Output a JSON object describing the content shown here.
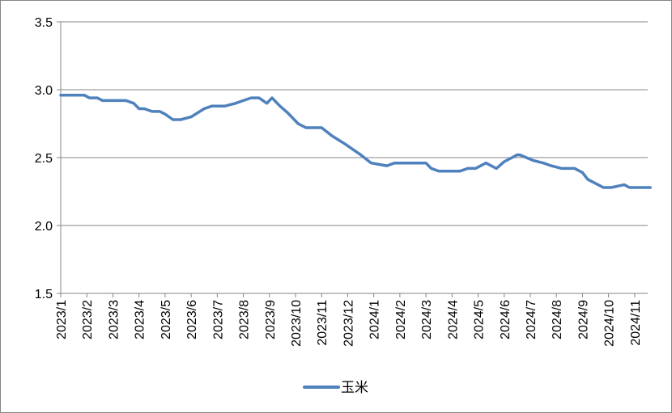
{
  "chart_data": {
    "type": "line",
    "title": "",
    "xlabel": "",
    "ylabel": "",
    "ylim": [
      1.5,
      3.5
    ],
    "y_ticks": [
      "1.5",
      "2.0",
      "2.5",
      "3.0",
      "3.5"
    ],
    "y_tick_values": [
      1.5,
      2.0,
      2.5,
      3.0,
      3.5
    ],
    "grid": true,
    "legend": "bottom-center",
    "line_color": "#4F81BD",
    "categories": [
      "2023/1",
      "2023/2",
      "2023/3",
      "2023/4",
      "2023/5",
      "2023/6",
      "2023/7",
      "2023/8",
      "2023/9",
      "2023/10",
      "2023/11",
      "2023/12",
      "2024/1",
      "2024/2",
      "2024/3",
      "2024/4",
      "2024/5",
      "2024/6",
      "2024/7",
      "2024/8",
      "2024/9",
      "2024/10",
      "2024/11"
    ],
    "series": [
      {
        "name": "玉米",
        "x": [
          0,
          0.6,
          0.9,
          1.1,
          1.4,
          1.6,
          2.0,
          2.5,
          2.8,
          3.0,
          3.2,
          3.5,
          3.8,
          4.0,
          4.3,
          4.6,
          5.0,
          5.5,
          5.8,
          6.3,
          6.7,
          7.0,
          7.3,
          7.6,
          7.9,
          8.1,
          8.4,
          8.7,
          8.9,
          9.1,
          9.4,
          9.7,
          10.0,
          10.4,
          10.9,
          11.2,
          11.5,
          11.9,
          12.2,
          12.5,
          12.8,
          13.2,
          13.6,
          14.0,
          14.2,
          14.5,
          14.9,
          15.3,
          15.6,
          15.9,
          16.3,
          16.7,
          17.0,
          17.3,
          17.5,
          17.6,
          18.1,
          18.5,
          18.8,
          19.2,
          19.7,
          20.0,
          20.2,
          20.5,
          20.8,
          21.1,
          21.6,
          21.8,
          22.1,
          22.3,
          22.6
        ],
        "values": [
          2.96,
          2.96,
          2.96,
          2.94,
          2.94,
          2.92,
          2.92,
          2.92,
          2.9,
          2.86,
          2.86,
          2.84,
          2.84,
          2.82,
          2.78,
          2.78,
          2.8,
          2.86,
          2.88,
          2.88,
          2.9,
          2.92,
          2.94,
          2.94,
          2.9,
          2.94,
          2.88,
          2.83,
          2.79,
          2.75,
          2.72,
          2.72,
          2.72,
          2.66,
          2.6,
          2.56,
          2.52,
          2.46,
          2.45,
          2.44,
          2.46,
          2.46,
          2.46,
          2.46,
          2.42,
          2.4,
          2.4,
          2.4,
          2.42,
          2.42,
          2.46,
          2.42,
          2.47,
          2.5,
          2.52,
          2.52,
          2.48,
          2.46,
          2.44,
          2.42,
          2.42,
          2.39,
          2.34,
          2.31,
          2.28,
          2.28,
          2.3,
          2.28,
          2.28,
          2.28,
          2.28
        ]
      }
    ]
  }
}
